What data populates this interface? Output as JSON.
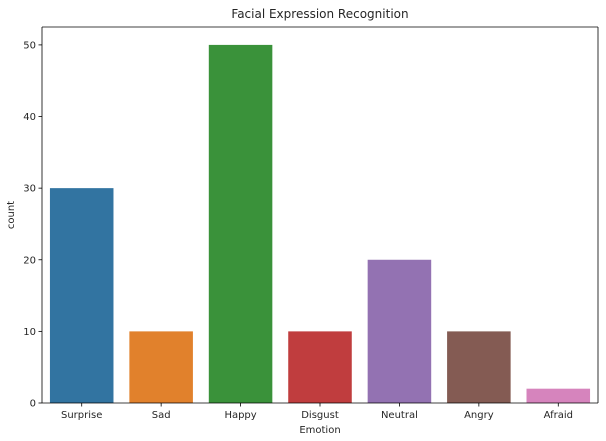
{
  "chart_data": {
    "type": "bar",
    "title": "Facial Expression Recognition",
    "xlabel": "Emotion",
    "ylabel": "count",
    "categories": [
      "Surprise",
      "Sad",
      "Happy",
      "Disgust",
      "Neutral",
      "Angry",
      "Afraid"
    ],
    "values": [
      30,
      10,
      50,
      10,
      20,
      10,
      2
    ],
    "colors": [
      "#3274a1",
      "#e1812c",
      "#3a923a",
      "#c03d3e",
      "#9372b2",
      "#845b53",
      "#d684bd"
    ],
    "ylim": [
      0,
      52.5
    ],
    "yticks": [
      0,
      10,
      20,
      30,
      40,
      50
    ],
    "grid": false,
    "legend": "none"
  }
}
